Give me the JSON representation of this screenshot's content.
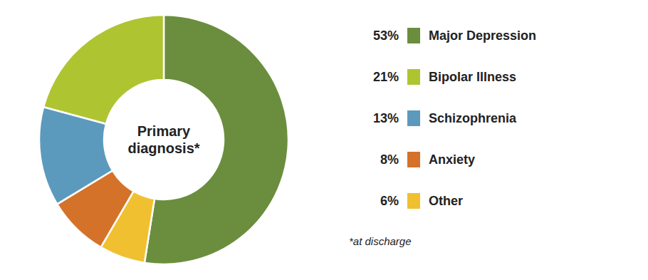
{
  "chart_data": {
    "type": "pie",
    "title": "Primary\ndiagnosis*",
    "subtitle": "*at discharge",
    "categories": [
      "Major Depression",
      "Bipolar Illness",
      "Schizophrenia",
      "Anxiety",
      "Other"
    ],
    "values": [
      53,
      21,
      13,
      8,
      6
    ],
    "value_labels": [
      "53%",
      "21%",
      "13%",
      "8%",
      "6%"
    ],
    "colors": [
      "#6b8e3e",
      "#afc431",
      "#5b9abd",
      "#d4722a",
      "#f0c030"
    ],
    "legend": "right"
  }
}
